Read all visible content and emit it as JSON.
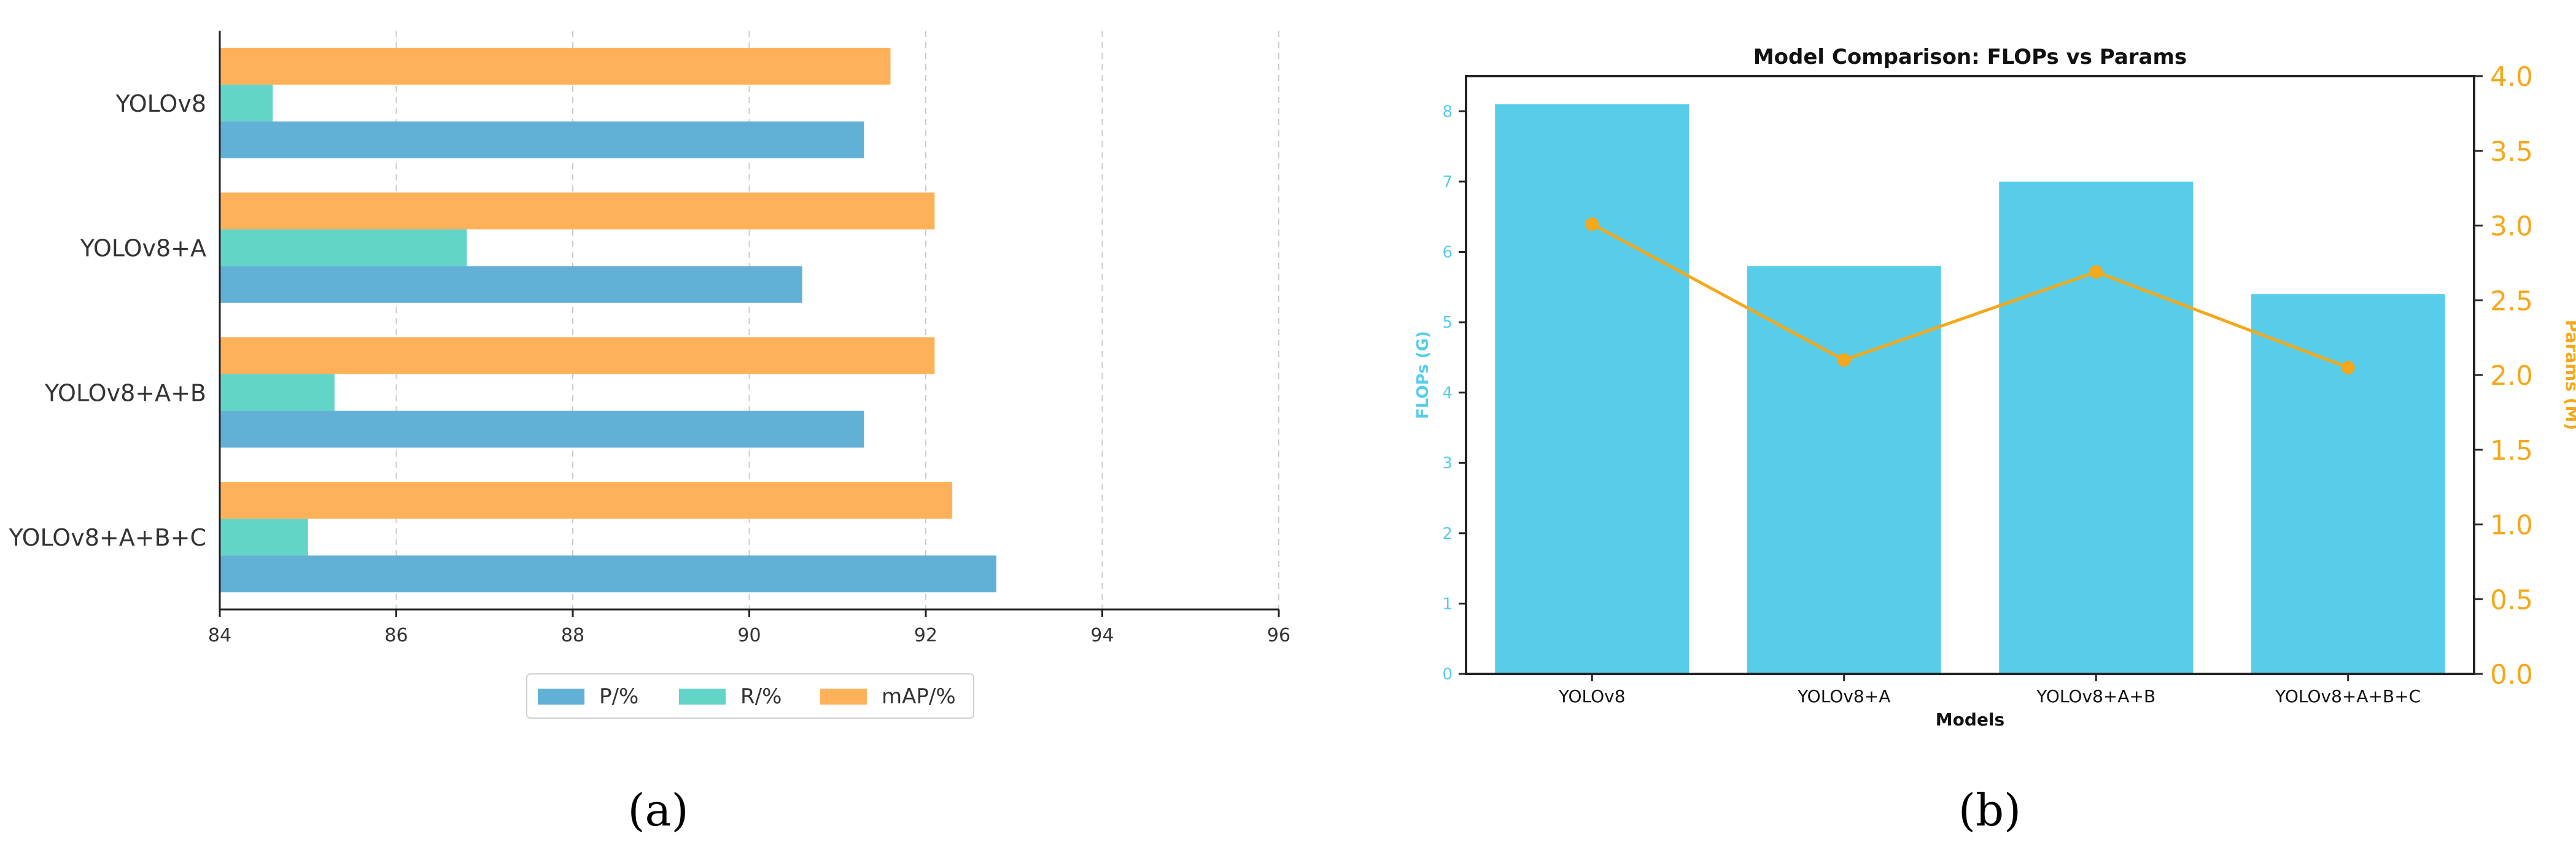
{
  "colors": {
    "p": "#62b0d5",
    "r": "#63d4c8",
    "map": "#ffb15a",
    "flops_bar": "#57cde9",
    "params_line": "#f4a81c",
    "axis": "#222222",
    "grid": "#cccccc"
  },
  "panel_a": {
    "caption": "(a)",
    "legend": [
      "P/%",
      "R/%",
      "mAP/%"
    ]
  },
  "panel_b": {
    "caption": "(b)"
  },
  "chart_data": [
    {
      "type": "bar",
      "orientation": "horizontal",
      "categories": [
        "YOLOv8",
        "YOLOv8+A",
        "YOLOv8+A+B",
        "YOLOv8+A+B+C"
      ],
      "series": [
        {
          "name": "P/%",
          "values": [
            91.3,
            90.6,
            91.3,
            92.8
          ]
        },
        {
          "name": "R/%",
          "values": [
            84.6,
            86.8,
            85.3,
            85.0
          ]
        },
        {
          "name": "mAP/%",
          "values": [
            91.6,
            92.1,
            92.1,
            92.3
          ]
        }
      ],
      "xlim": [
        84,
        96
      ],
      "xticks": [
        84,
        86,
        88,
        90,
        92,
        94,
        96
      ],
      "grid": "vertical dashed",
      "legend_position": "bottom-center",
      "title": "",
      "xlabel": "",
      "ylabel": ""
    },
    {
      "type": "bar",
      "title": "Model Comparison: FLOPs vs Params",
      "xlabel": "Models",
      "categories": [
        "YOLOv8",
        "YOLOv8+A",
        "YOLOv8+A+B",
        "YOLOv8+A+B+C"
      ],
      "bars": {
        "name": "FLOPs (G)",
        "values": [
          8.1,
          5.8,
          7.0,
          5.4
        ]
      },
      "line": {
        "name": "Params (M)",
        "values": [
          3.01,
          2.1,
          2.69,
          2.05
        ]
      },
      "ylabel_left": "FLOPs (G)",
      "ylabel_right": "Params (M)",
      "ylim_left": [
        0,
        8.5
      ],
      "yticks_left": [
        0,
        1,
        2,
        3,
        4,
        5,
        6,
        7,
        8
      ],
      "ylim_right": [
        0,
        4.0
      ],
      "yticks_right": [
        "0.0",
        "0.5",
        "1.0",
        "1.5",
        "2.0",
        "2.5",
        "3.0",
        "3.5",
        "4.0"
      ]
    }
  ]
}
